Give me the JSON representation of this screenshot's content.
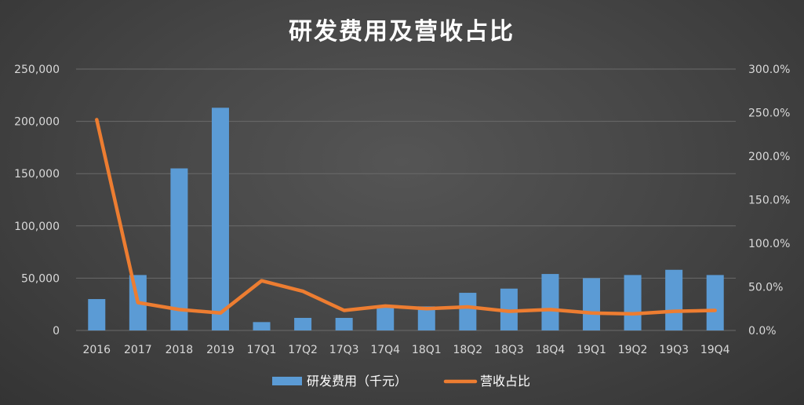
{
  "chart_data": {
    "type": "bar+line",
    "title": "研发费用及营收占比",
    "categories": [
      "2016",
      "2017",
      "2018",
      "2019",
      "17Q1",
      "17Q2",
      "17Q3",
      "17Q4",
      "18Q1",
      "18Q2",
      "18Q3",
      "18Q4",
      "19Q1",
      "19Q2",
      "19Q3",
      "19Q4"
    ],
    "y_left": {
      "ticks": [
        "0",
        "50,000",
        "100,000",
        "150,000",
        "200,000",
        "250,000"
      ],
      "ylim": [
        0,
        250000
      ]
    },
    "y_right": {
      "ticks": [
        "0.0%",
        "50.0%",
        "100.0%",
        "150.0%",
        "200.0%",
        "250.0%",
        "300.0%"
      ],
      "ylim": [
        0,
        300
      ]
    },
    "grid": true,
    "legend_position": "bottom",
    "series": [
      {
        "name": "研发费用（千元）",
        "type": "bar",
        "axis": "left",
        "color": "#5b9bd5",
        "values": [
          30000,
          53000,
          155000,
          213000,
          8000,
          12000,
          12000,
          23000,
          23000,
          36000,
          40000,
          54000,
          50000,
          53000,
          58000,
          53000
        ]
      },
      {
        "name": "营收占比",
        "type": "line",
        "axis": "right",
        "color": "#ed7d31",
        "values": [
          242,
          32,
          24,
          20,
          57,
          45,
          23,
          28,
          25,
          27,
          22,
          24,
          20,
          19,
          22,
          23
        ]
      }
    ]
  }
}
